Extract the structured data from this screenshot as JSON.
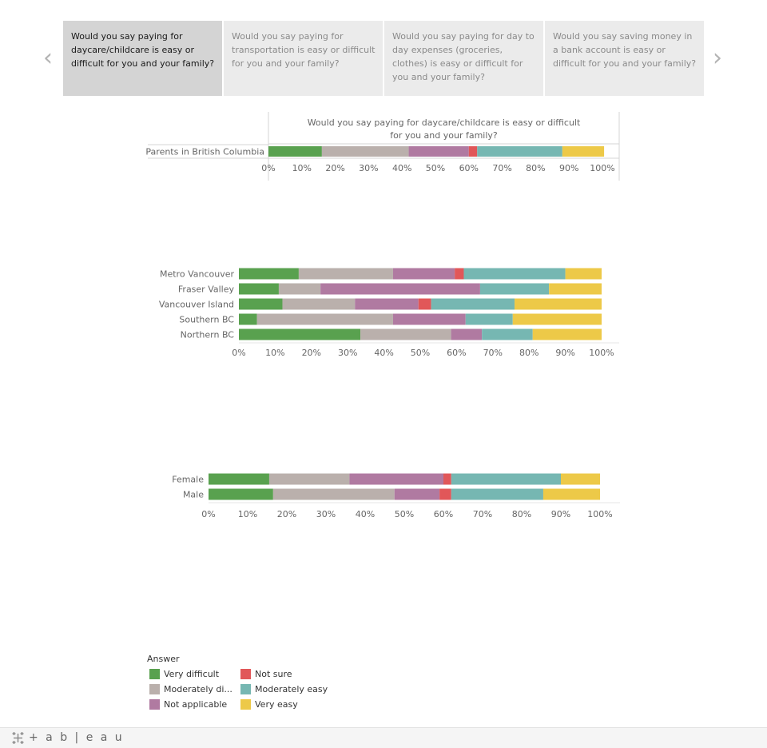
{
  "story": {
    "points": [
      {
        "label": "Would you say paying for daycare/childcare is easy or difficult for you and your family?",
        "active": true
      },
      {
        "label": "Would you say paying for transportation is easy or difficult for you and your family?",
        "active": false
      },
      {
        "label": "Would you say paying for day to day expenses (groceries, clothes) is easy or difficult for you and your family?",
        "active": false
      },
      {
        "label": "Would you say saving money in a bank account is easy or difficult for you and your family?",
        "active": false
      }
    ],
    "prev_icon": "chevron-left-icon",
    "next_icon": "chevron-right-icon"
  },
  "colors": {
    "Very difficult": "#59a14f",
    "Moderately difficult": "#bab0ac",
    "Not applicable": "#b07aa1",
    "Not sure": "#e15759",
    "Moderately easy": "#76b7b2",
    "Very easy": "#edc948"
  },
  "chart_data": [
    {
      "type": "bar",
      "orientation": "horizontal",
      "stacked": true,
      "title": "Would you say paying for daycare/childcare is easy or difficult for you and your family?",
      "categories": [
        "Parents in British Columbia"
      ],
      "series": [
        {
          "name": "Very difficult",
          "values": [
            16
          ]
        },
        {
          "name": "Moderately difficult",
          "values": [
            26
          ]
        },
        {
          "name": "Not applicable",
          "values": [
            18
          ]
        },
        {
          "name": "Not sure",
          "values": [
            2.5
          ]
        },
        {
          "name": "Moderately easy",
          "values": [
            25.5
          ]
        },
        {
          "name": "Very easy",
          "values": [
            12.5
          ]
        }
      ],
      "xlim": [
        0,
        100
      ],
      "xticks": [
        "0%",
        "10%",
        "20%",
        "30%",
        "40%",
        "50%",
        "60%",
        "70%",
        "80%",
        "90%",
        "100%"
      ]
    },
    {
      "type": "bar",
      "orientation": "horizontal",
      "stacked": true,
      "categories": [
        "Metro Vancouver",
        "Fraser Valley",
        "Vancouver Island",
        "Southern BC",
        "Northern BC"
      ],
      "series": [
        {
          "name": "Very difficult",
          "values": [
            16.5,
            11,
            12,
            5,
            33.5
          ]
        },
        {
          "name": "Moderately difficult",
          "values": [
            26,
            11.5,
            20,
            37.5,
            25
          ]
        },
        {
          "name": "Not applicable",
          "values": [
            17,
            44,
            17.5,
            20,
            8.5
          ]
        },
        {
          "name": "Not sure",
          "values": [
            2.5,
            0,
            3.5,
            0,
            0
          ]
        },
        {
          "name": "Moderately easy",
          "values": [
            28,
            19,
            23,
            13,
            14
          ]
        },
        {
          "name": "Very easy",
          "values": [
            10,
            14.5,
            24,
            24.5,
            19
          ]
        }
      ],
      "xlim": [
        0,
        100
      ],
      "xticks": [
        "0%",
        "10%",
        "20%",
        "30%",
        "40%",
        "50%",
        "60%",
        "70%",
        "80%",
        "90%",
        "100%"
      ]
    },
    {
      "type": "bar",
      "orientation": "horizontal",
      "stacked": true,
      "categories": [
        "Female",
        "Male"
      ],
      "series": [
        {
          "name": "Very difficult",
          "values": [
            15.5,
            16.5
          ]
        },
        {
          "name": "Moderately difficult",
          "values": [
            20.5,
            31
          ]
        },
        {
          "name": "Not applicable",
          "values": [
            24,
            11.5
          ]
        },
        {
          "name": "Not sure",
          "values": [
            2,
            3
          ]
        },
        {
          "name": "Moderately easy",
          "values": [
            28,
            23.5
          ]
        },
        {
          "name": "Very easy",
          "values": [
            10,
            14.5
          ]
        }
      ],
      "xlim": [
        0,
        100
      ],
      "xticks": [
        "0%",
        "10%",
        "20%",
        "30%",
        "40%",
        "50%",
        "60%",
        "70%",
        "80%",
        "90%",
        "100%"
      ]
    }
  ],
  "legend": {
    "title": "Answer",
    "items": [
      {
        "key": "Very difficult",
        "label": "Very difficult"
      },
      {
        "key": "Moderately difficult",
        "label": "Moderately di..."
      },
      {
        "key": "Not applicable",
        "label": "Not applicable"
      },
      {
        "key": "Not sure",
        "label": "Not sure"
      },
      {
        "key": "Moderately easy",
        "label": "Moderately easy"
      },
      {
        "key": "Very easy",
        "label": "Very easy"
      }
    ]
  },
  "footer": {
    "logo_text": "+ a b | e a u",
    "logo_icon": "tableau-logo-icon"
  }
}
